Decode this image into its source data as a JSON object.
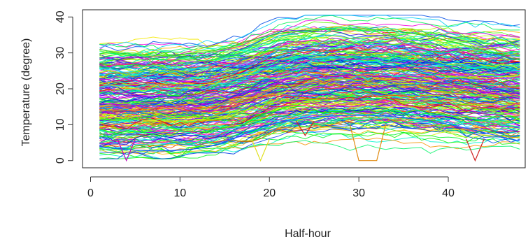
{
  "chart_data": {
    "type": "line",
    "title": "",
    "xlabel": "Half-hour",
    "ylabel": "Temperature (degree)",
    "xlim": [
      -0.9,
      48.6
    ],
    "ylim": [
      -2,
      42
    ],
    "x_ticks": [
      0,
      10,
      20,
      30,
      40
    ],
    "y_ticks": [
      0,
      10,
      20,
      30,
      40
    ],
    "x_tick_labels": [
      "0",
      "10",
      "20",
      "30",
      "40"
    ],
    "y_tick_labels": [
      "0",
      "10",
      "20",
      "30",
      "40"
    ],
    "grid": false,
    "legend": "none",
    "x": [
      1,
      2,
      3,
      4,
      5,
      6,
      7,
      8,
      9,
      10,
      11,
      12,
      13,
      14,
      15,
      16,
      17,
      18,
      19,
      20,
      21,
      22,
      23,
      24,
      25,
      26,
      27,
      28,
      29,
      30,
      31,
      32,
      33,
      34,
      35,
      36,
      37,
      38,
      39,
      40,
      41,
      42,
      43,
      44,
      45,
      46,
      47,
      48
    ],
    "profile_shape": "low and flat over half-hours 1-13, rising over 14-24 to a broad maximum near 28-34, declining slowly toward 48",
    "series_count": 300,
    "series_color_range": "rainbow hues from red through yellow, green, cyan and blue to magenta",
    "representative_series": [
      {
        "values": [
          16,
          15.8,
          15.6,
          15.5,
          15.4,
          15.3,
          15.2,
          15.2,
          15.2,
          15.2,
          15.3,
          15.4,
          15.7,
          16.2,
          16.9,
          17.7,
          18.6,
          19.4,
          20.2,
          20.9,
          21.5,
          22,
          22.4,
          22.7,
          23,
          23.2,
          23.4,
          23.5,
          23.6,
          23.6,
          23.6,
          23.5,
          23.4,
          23.2,
          23,
          22.7,
          22.4,
          22.1,
          21.7,
          21.3,
          20.8,
          20.3,
          19.8,
          19.2,
          18.7,
          18.1,
          17.6,
          17.2
        ]
      },
      {
        "values": [
          31,
          30.5,
          30,
          29.8,
          29.6,
          29.5,
          29.4,
          29.4,
          29.5,
          29.6,
          29.8,
          30,
          30.3,
          30.7,
          31.2,
          31.9,
          32.7,
          33.5,
          34.2,
          34.8,
          35.3,
          35.7,
          36,
          36.2,
          36.4,
          36.5,
          36.6,
          36.7,
          36.7,
          36.7,
          36.6,
          36.5,
          36.3,
          36.1,
          35.8,
          35.4,
          35,
          34.5,
          34,
          33.4,
          32.8,
          32.1,
          31.4,
          30.7,
          30,
          29.3,
          28.6,
          28
        ]
      },
      {
        "values": [
          4,
          3.6,
          3.3,
          3.1,
          2.9,
          2.8,
          2.7,
          2.7,
          2.8,
          2.9,
          3.1,
          3.4,
          3.8,
          4.4,
          5.2,
          6.1,
          7.2,
          8.2,
          9.2,
          10,
          10.7,
          11.2,
          11.6,
          11.9,
          12.1,
          12.3,
          12.4,
          12.5,
          12.6,
          12.6,
          12.6,
          12.5,
          12.4,
          12.2,
          12,
          11.7,
          11.4,
          11,
          10.6,
          10.1,
          9.6,
          9,
          8.4,
          7.8,
          7.2,
          6.6,
          6,
          5.5
        ]
      }
    ],
    "anomalies": [
      {
        "series": "orange",
        "x": [
          30,
          31,
          32
        ],
        "y": [
          0,
          0,
          0
        ]
      },
      {
        "series": "yellow",
        "x": [
          19
        ],
        "y": [
          0
        ]
      },
      {
        "series": "magenta",
        "x": [
          4
        ],
        "y": [
          0
        ]
      },
      {
        "series": "red",
        "x": [
          43
        ],
        "y": [
          0
        ]
      },
      {
        "series": "red",
        "x": [
          24
        ],
        "y": [
          7
        ]
      }
    ]
  }
}
